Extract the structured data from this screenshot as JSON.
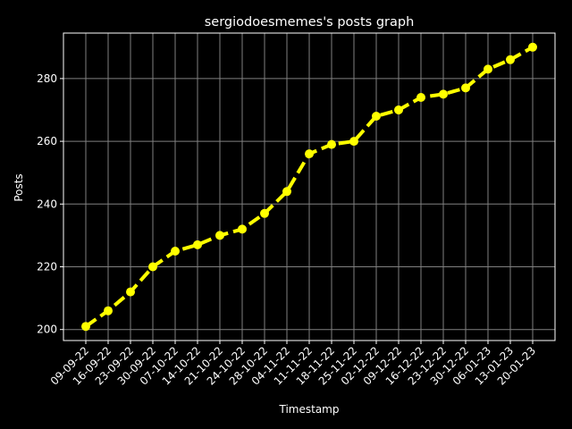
{
  "chart_data": {
    "type": "line",
    "title": "sergiodoesmemes's posts graph",
    "xlabel": "Timestamp",
    "ylabel": "Posts",
    "categories": [
      "09-09-22",
      "16-09-22",
      "23-09-22",
      "30-09-22",
      "07-10-22",
      "14-10-22",
      "21-10-22",
      "24-10-22",
      "28-10-22",
      "04-11-22",
      "11-11-22",
      "18-11-22",
      "25-11-22",
      "02-12-22",
      "09-12-22",
      "16-12-22",
      "23-12-22",
      "30-12-22",
      "06-01-23",
      "13-01-23",
      "20-01-23"
    ],
    "series": [
      {
        "values": [
          201,
          206,
          212,
          220,
          225,
          227,
          230,
          232,
          237,
          244,
          256,
          259,
          260,
          268,
          270,
          274,
          275,
          277,
          283,
          286,
          290
        ]
      }
    ],
    "ylim": [
      196.5,
      294.5
    ],
    "yticks": [
      200,
      220,
      240,
      260,
      280
    ],
    "grid": true,
    "legend": "none",
    "colors": {
      "background": "#000000",
      "line": "#ffff00",
      "grid": "#808080",
      "axis": "#ffffff",
      "text": "#ffffff"
    }
  }
}
